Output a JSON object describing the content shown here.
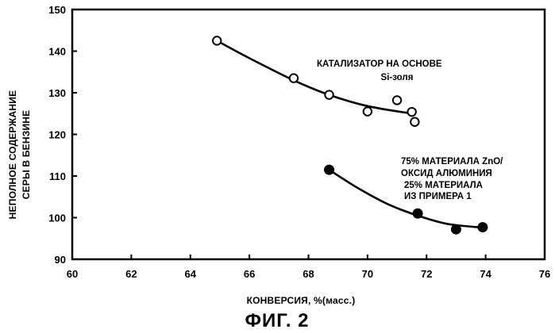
{
  "figure_label": "ФИГ. 2",
  "chart_data": {
    "type": "scatter",
    "xlabel": "КОНВЕРСИЯ, %(масс.)",
    "ylabel": [
      "НЕПОЛНОЕ СОДЕРЖАНИЕ",
      "СЕРЫ В БЕНЗИНЕ"
    ],
    "xlim": [
      60,
      76
    ],
    "ylim": [
      90,
      150
    ],
    "x_ticks": [
      60,
      62,
      64,
      66,
      68,
      70,
      72,
      74,
      76
    ],
    "y_ticks": [
      90,
      100,
      110,
      120,
      130,
      140,
      150
    ],
    "grid": false,
    "series": [
      {
        "marker": "open-circle",
        "color": "#000000",
        "annotation": [
          "КАТАЛИЗАТОР НА ОСНОВЕ",
          "Si-золя"
        ],
        "points": [
          {
            "x": 64.9,
            "y": 142.5
          },
          {
            "x": 67.5,
            "y": 133.5
          },
          {
            "x": 68.7,
            "y": 129.5
          },
          {
            "x": 70.0,
            "y": 125.5
          },
          {
            "x": 71.0,
            "y": 128.2
          },
          {
            "x": 71.5,
            "y": 125.4
          },
          {
            "x": 71.6,
            "y": 123.0
          }
        ],
        "trend": [
          {
            "x": 64.9,
            "y": 142.5
          },
          {
            "x": 66.0,
            "y": 138.3
          },
          {
            "x": 67.5,
            "y": 133.0
          },
          {
            "x": 68.7,
            "y": 129.5
          },
          {
            "x": 70.0,
            "y": 126.8
          },
          {
            "x": 71.5,
            "y": 125.0
          }
        ]
      },
      {
        "marker": "filled-circle",
        "color": "#000000",
        "annotation": [
          "75% МАТЕРИАЛА ZnO/",
          "ОКСИД АЛЮМИНИЯ",
          "25% МАТЕРИАЛА",
          "ИЗ ПРИМЕРА 1"
        ],
        "points": [
          {
            "x": 68.7,
            "y": 111.5
          },
          {
            "x": 71.7,
            "y": 101.0
          },
          {
            "x": 73.0,
            "y": 97.2
          },
          {
            "x": 73.9,
            "y": 97.7
          }
        ],
        "trend": [
          {
            "x": 68.7,
            "y": 111.5
          },
          {
            "x": 69.7,
            "y": 107.0
          },
          {
            "x": 70.7,
            "y": 103.2
          },
          {
            "x": 71.7,
            "y": 100.5
          },
          {
            "x": 72.7,
            "y": 98.5
          },
          {
            "x": 73.9,
            "y": 97.6
          }
        ]
      }
    ]
  }
}
